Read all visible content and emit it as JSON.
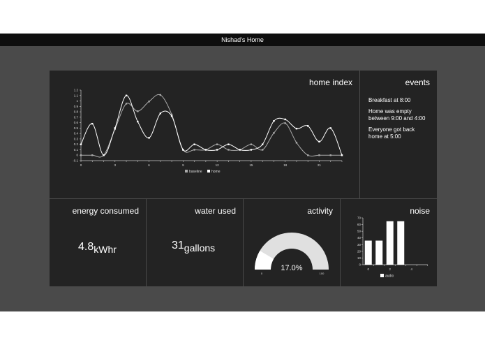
{
  "title": "Nishad's Home",
  "home_index": {
    "title": "home index"
  },
  "events": {
    "title": "events",
    "items": [
      "Breakfast at 8:00",
      "Home was empty between 9:00 and 4:00",
      "Everyone got back home at 5:00"
    ]
  },
  "energy": {
    "title": "energy consumed",
    "value": "4.8",
    "unit": "kWhr"
  },
  "water": {
    "title": "water used",
    "value": "31",
    "unit": "gallons"
  },
  "activity": {
    "title": "activity",
    "value": "17.0%",
    "min": "0",
    "max": "100",
    "fraction": 0.17,
    "colors": {
      "fill": "#ffffff",
      "rest": "#e0e0e0"
    }
  },
  "noise": {
    "title": "noise"
  },
  "chart_data": [
    {
      "type": "line",
      "x": [
        0,
        1,
        2,
        3,
        4,
        5,
        6,
        7,
        8,
        9,
        10,
        11,
        12,
        13,
        14,
        15,
        16,
        17,
        18,
        19,
        20,
        21,
        22,
        23
      ],
      "series": [
        {
          "name": "baseline",
          "color": "#aaaaaa",
          "values": [
            0,
            0,
            0,
            0.48,
            0.95,
            0.81,
            0.99,
            1.11,
            0.75,
            0.1,
            0.1,
            0.1,
            0.2,
            0.1,
            0.1,
            0.2,
            0.1,
            0.41,
            0.59,
            0.23,
            0,
            0,
            0,
            0
          ]
        },
        {
          "name": "home",
          "color": "#ffffff",
          "values": [
            0.2,
            0.58,
            0,
            0.5,
            1.1,
            0.62,
            0.32,
            0.77,
            0.72,
            0.1,
            0.2,
            0.1,
            0.1,
            0.2,
            0.1,
            0.1,
            0.2,
            0.63,
            0.66,
            0.49,
            0.54,
            0.25,
            0.5,
            0
          ]
        }
      ],
      "xticks": [
        0,
        3,
        6,
        9,
        12,
        15,
        18,
        21
      ],
      "yticks": [
        -0.1,
        0,
        0.1,
        0.2,
        0.3,
        0.4,
        0.5,
        0.6,
        0.7,
        0.8,
        0.9,
        1,
        1.1,
        1.2
      ],
      "xlim": [
        0,
        23
      ],
      "ylim": [
        -0.1,
        1.2
      ],
      "legend": "bottom"
    },
    {
      "type": "bar",
      "x": [
        0,
        1,
        2,
        3
      ],
      "series": [
        {
          "name": "audio",
          "values": [
            36,
            36,
            65,
            65
          ]
        }
      ],
      "xticks": [
        0,
        2,
        4
      ],
      "yticks": [
        0,
        10,
        20,
        30,
        40,
        50,
        60,
        70
      ],
      "xlim": [
        -0.5,
        5.5
      ],
      "ylim": [
        0,
        70
      ],
      "legend": "bottom"
    }
  ]
}
